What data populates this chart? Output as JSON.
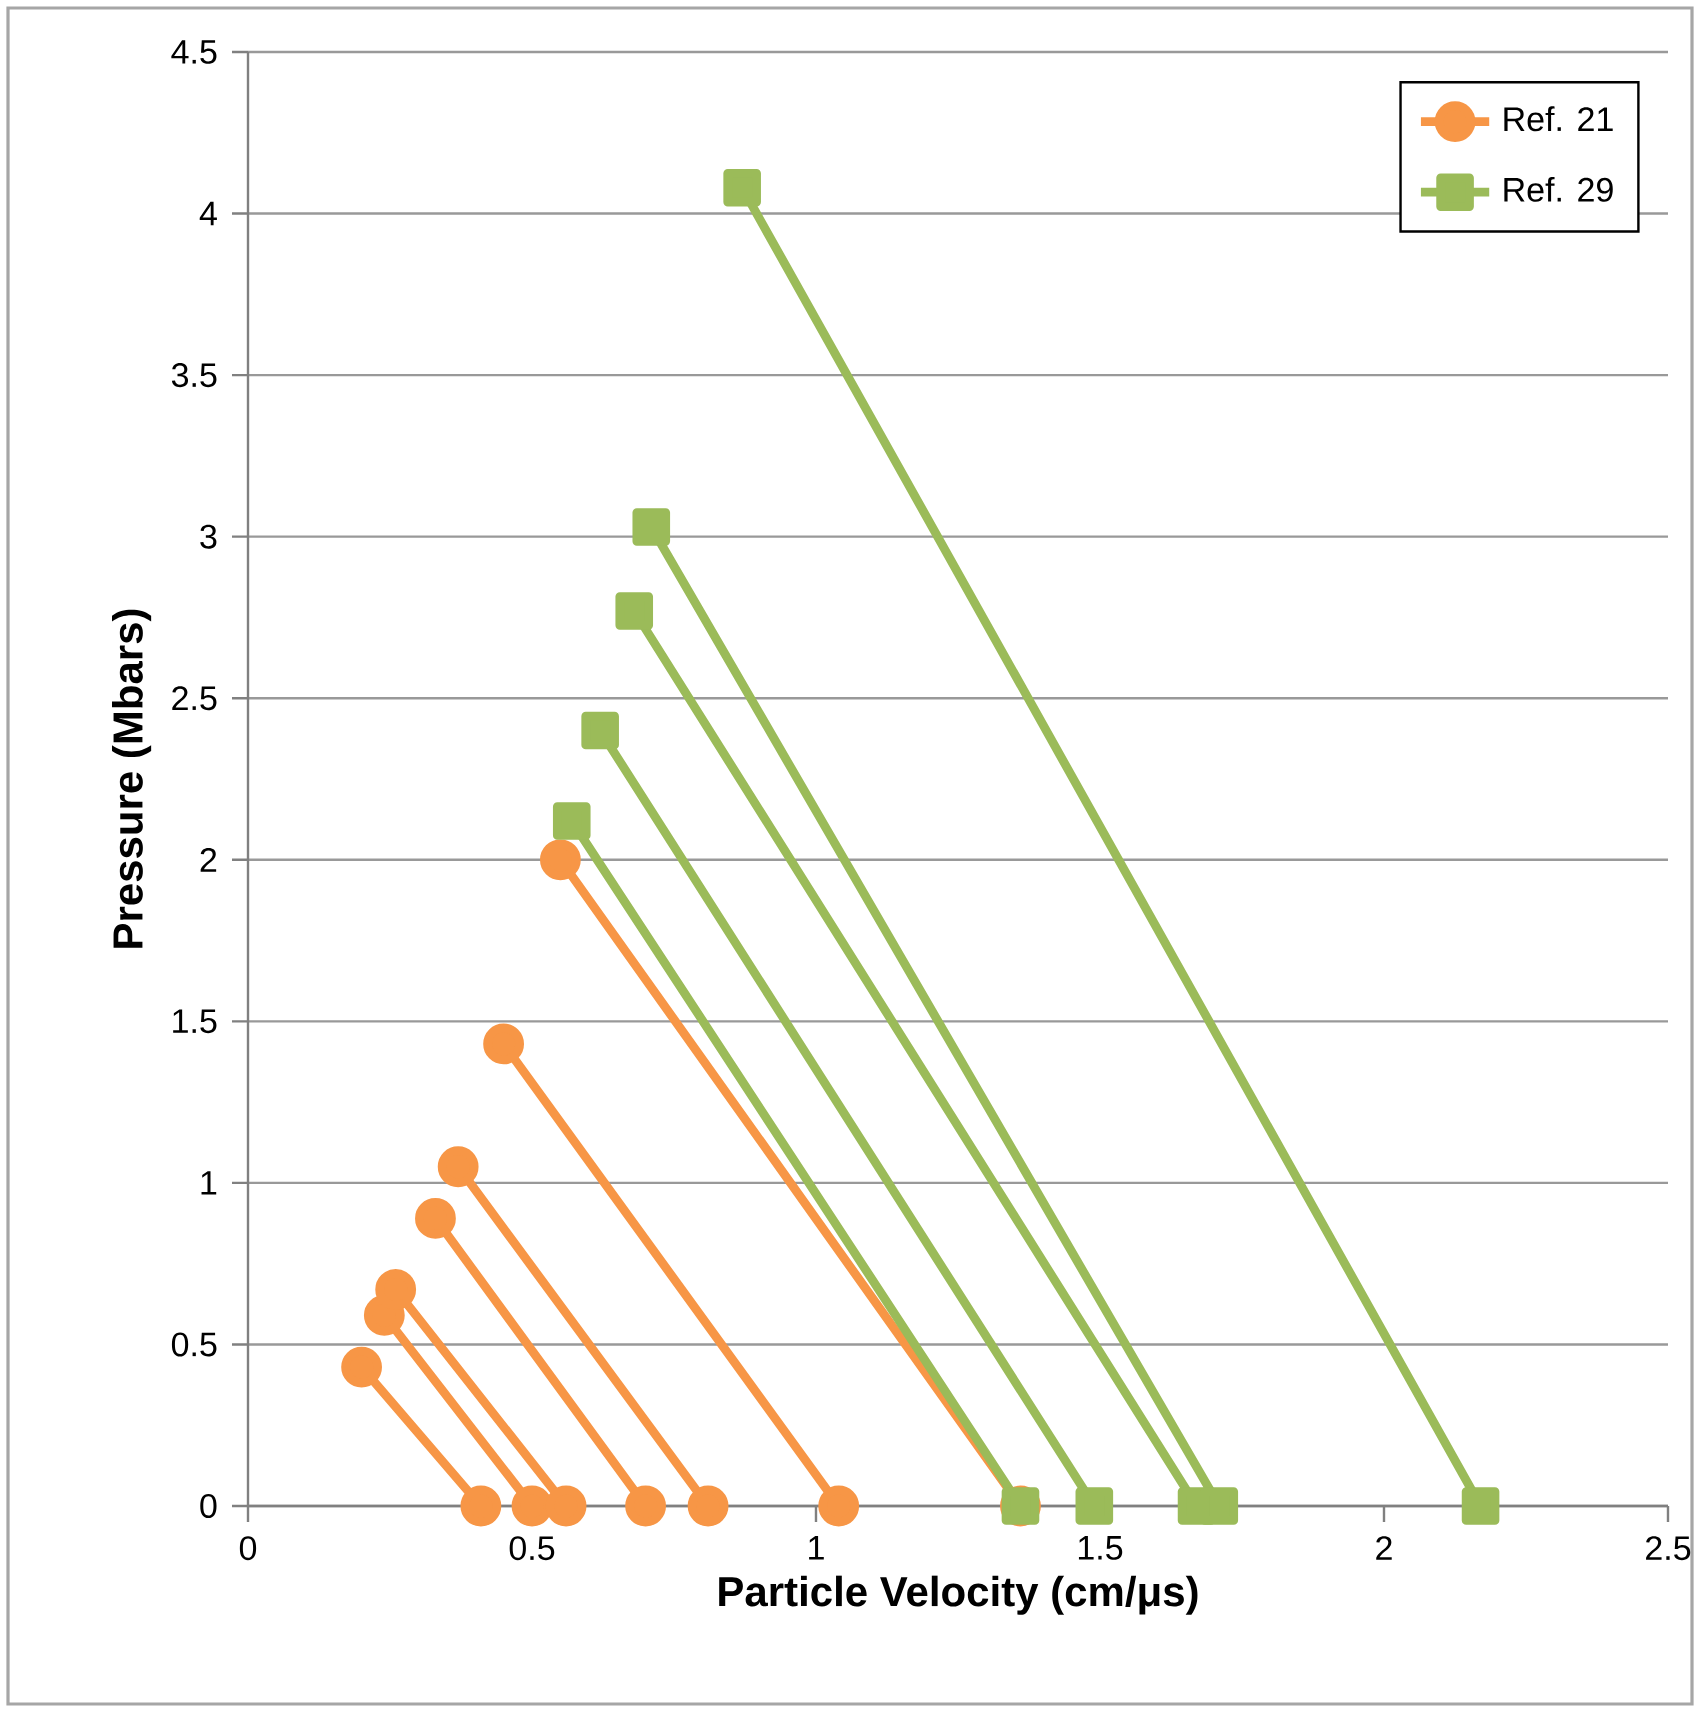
{
  "chart_data": {
    "type": "line",
    "xlabel": "Particle Velocity (cm/μs)",
    "ylabel": "Pressure (Mbars)",
    "xlim": [
      0,
      2.5
    ],
    "ylim": [
      0,
      4.5
    ],
    "xticks": [
      0,
      0.5,
      1,
      1.5,
      2,
      2.5
    ],
    "yticks": [
      0,
      0.5,
      1,
      1.5,
      2,
      2.5,
      3,
      3.5,
      4,
      4.5
    ],
    "grid": "y",
    "legend": "top right",
    "line_style": "solid",
    "series": [
      {
        "name": "Ref. 21",
        "color": "#f79646",
        "marker": "circle",
        "x": [
          0.2,
          0.41,
          null,
          0.24,
          0.5,
          null,
          0.26,
          0.56,
          null,
          0.33,
          0.7,
          null,
          0.37,
          0.81,
          null,
          0.45,
          1.04,
          null,
          0.55,
          1.36
        ],
        "values": [
          0.43,
          0,
          null,
          0.59,
          0,
          null,
          0.67,
          0,
          null,
          0.89,
          0,
          null,
          1.05,
          0,
          null,
          1.43,
          0,
          null,
          2.0,
          0
        ]
      },
      {
        "name": "Ref. 29",
        "color": "#9bbb59",
        "marker": "square",
        "x": [
          0.57,
          1.36,
          null,
          0.62,
          1.49,
          null,
          0.68,
          1.67,
          null,
          0.71,
          1.71,
          null,
          0.87,
          2.17
        ],
        "values": [
          2.12,
          0,
          null,
          2.4,
          0,
          null,
          2.77,
          0,
          null,
          3.03,
          0,
          null,
          4.08,
          0
        ]
      }
    ]
  }
}
